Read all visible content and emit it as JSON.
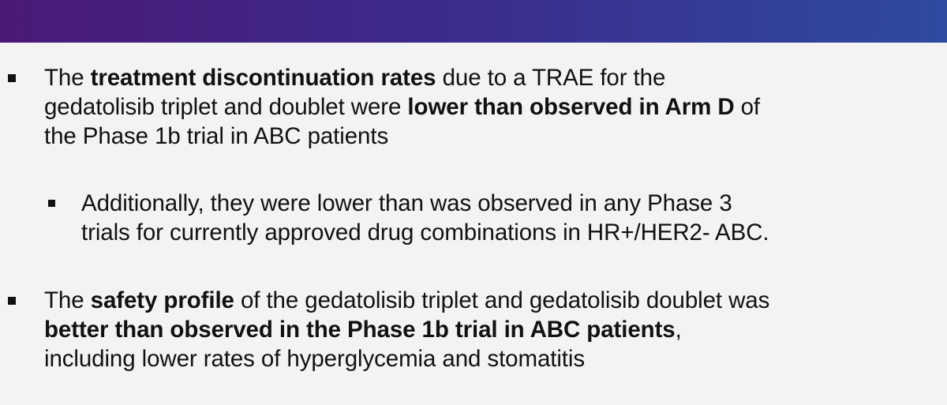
{
  "slide": {
    "bullets": [
      {
        "level": 1,
        "lines": [
          {
            "pre": "The ",
            "bold": "treatment discontinuation rates",
            "post": " due to a TRAE for the"
          },
          {
            "pre": "gedatolisib triplet and doublet were ",
            "bold": "lower than observed in Arm D",
            "post": " of"
          },
          {
            "pre": "the Phase 1b trial in ABC patients",
            "bold": "",
            "post": ""
          }
        ]
      },
      {
        "level": 2,
        "lines": [
          {
            "pre": "Additionally, they were lower than was observed in any Phase 3",
            "bold": "",
            "post": ""
          },
          {
            "pre": "trials for currently approved drug combinations in HR+/HER2- ABC.",
            "bold": "",
            "post": ""
          }
        ]
      },
      {
        "level": 1,
        "lines": [
          {
            "pre": "The ",
            "bold": "safety profile",
            "post": " of the gedatolisib triplet and gedatolisib doublet was"
          },
          {
            "pre": "",
            "bold": "better than observed in the Phase 1b trial in ABC patients",
            "post": ","
          },
          {
            "pre": "including lower rates of hyperglycemia and stomatitis",
            "bold": "",
            "post": ""
          }
        ]
      }
    ]
  },
  "colors": {
    "header_start": "#4a1a78",
    "header_end": "#2e4ba0",
    "background": "#f3f3f3",
    "text": "#111111"
  }
}
